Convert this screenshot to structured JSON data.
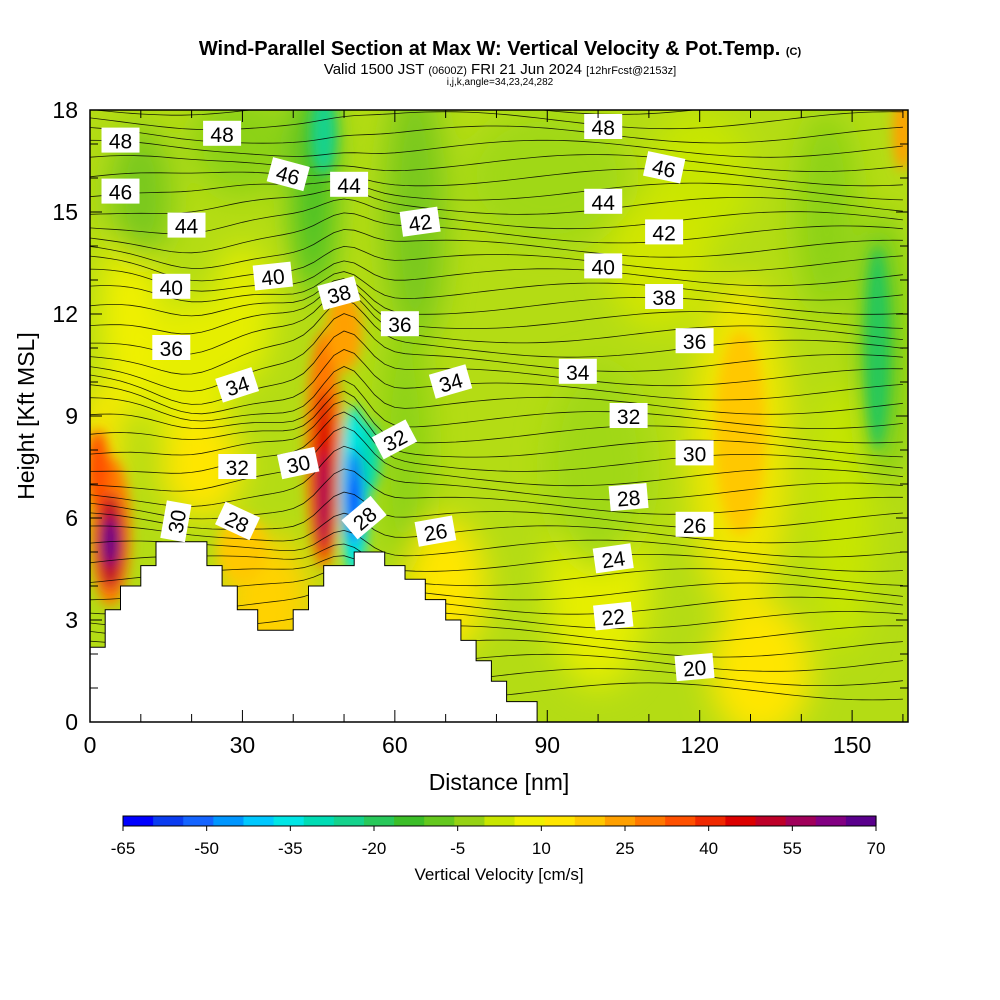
{
  "title": {
    "main": "Wind-Parallel Section at Max W: Vertical Velocity & Pot.Temp.",
    "main_suffix": "(C)",
    "valid_prefix": "Valid 1500 JST",
    "valid_utc": "(0600Z)",
    "valid_date": "FRI 21 Jun 2024",
    "fcst": "[12hrFcst@2153z]",
    "indices": "i,j,k,angle=34,23,24,282"
  },
  "chart_data": {
    "type": "heatmap",
    "xlabel": "Distance [nm]",
    "ylabel": "Height [Kft MSL]",
    "xlim": [
      0,
      161
    ],
    "ylim": [
      0,
      18
    ],
    "x_ticks": [
      "0",
      "30",
      "60",
      "90",
      "120",
      "150"
    ],
    "y_ticks": [
      "0",
      "3",
      "6",
      "9",
      "12",
      "15",
      "18"
    ],
    "colorbar": {
      "label": "Vertical Velocity [cm/s]",
      "tick_labels": [
        "-65",
        "-50",
        "-35",
        "-20",
        "-5",
        "10",
        "25",
        "40",
        "55",
        "70"
      ],
      "min": -65,
      "max": 70,
      "colors": [
        "#0000ff",
        "#0a3cf0",
        "#1464ff",
        "#0096ff",
        "#00c8ff",
        "#00e6e6",
        "#00dcb4",
        "#14d28c",
        "#28c85a",
        "#3cbe28",
        "#64c81e",
        "#96d214",
        "#c8e600",
        "#f0f000",
        "#ffe600",
        "#ffc800",
        "#ffa000",
        "#ff7800",
        "#ff5000",
        "#f02800",
        "#dc0000",
        "#be0028",
        "#a0005a",
        "#820082",
        "#5a008c"
      ]
    },
    "terrain_profile": [
      [
        0,
        2.2
      ],
      [
        3,
        2.2
      ],
      [
        3,
        3.3
      ],
      [
        6,
        3.3
      ],
      [
        6,
        4.0
      ],
      [
        10,
        4.0
      ],
      [
        10,
        4.6
      ],
      [
        13,
        4.6
      ],
      [
        13,
        5.3
      ],
      [
        23,
        5.3
      ],
      [
        23,
        4.6
      ],
      [
        26,
        4.6
      ],
      [
        26,
        4.0
      ],
      [
        29,
        4.0
      ],
      [
        29,
        3.3
      ],
      [
        33,
        3.3
      ],
      [
        33,
        2.7
      ],
      [
        40,
        2.7
      ],
      [
        40,
        3.3
      ],
      [
        43,
        3.3
      ],
      [
        43,
        4.0
      ],
      [
        46,
        4.0
      ],
      [
        46,
        4.6
      ],
      [
        52,
        4.6
      ],
      [
        52,
        5.0
      ],
      [
        58,
        5.0
      ],
      [
        58,
        4.6
      ],
      [
        62,
        4.6
      ],
      [
        62,
        4.2
      ],
      [
        66,
        4.2
      ],
      [
        66,
        3.6
      ],
      [
        70,
        3.6
      ],
      [
        70,
        3.0
      ],
      [
        73,
        3.0
      ],
      [
        73,
        2.4
      ],
      [
        76,
        2.4
      ],
      [
        76,
        1.8
      ],
      [
        79,
        1.8
      ],
      [
        79,
        1.2
      ],
      [
        82,
        1.2
      ],
      [
        82,
        0.6
      ],
      [
        88,
        0.6
      ],
      [
        88,
        0
      ]
    ],
    "updraft_cores": [
      {
        "x": 4,
        "z": 5.3,
        "w": 70
      },
      {
        "x": 46,
        "z": 7.0,
        "w": 55
      },
      {
        "x": 1,
        "z": 7.5,
        "w": 40
      },
      {
        "x": 128,
        "z": 8.5,
        "w": 25
      }
    ],
    "downdraft_cores": [
      {
        "x": 52,
        "z": 6.5,
        "w": -65
      },
      {
        "x": 46,
        "z": 17.0,
        "w": -25
      },
      {
        "x": 155,
        "z": 11.0,
        "w": -20
      }
    ],
    "isentrope_labels": [
      {
        "x": 6,
        "y": 17.1,
        "text": "48",
        "angle": 0
      },
      {
        "x": 26,
        "y": 17.3,
        "text": "48",
        "angle": 0
      },
      {
        "x": 101,
        "y": 17.5,
        "text": "48",
        "angle": 0
      },
      {
        "x": 6,
        "y": 15.6,
        "text": "46",
        "angle": 0
      },
      {
        "x": 39,
        "y": 16.1,
        "text": "46",
        "angle": 15
      },
      {
        "x": 113,
        "y": 16.3,
        "text": "46",
        "angle": 12
      },
      {
        "x": 51,
        "y": 15.8,
        "text": "44",
        "angle": 0
      },
      {
        "x": 19,
        "y": 14.6,
        "text": "44",
        "angle": 0
      },
      {
        "x": 101,
        "y": 15.3,
        "text": "44",
        "angle": 0
      },
      {
        "x": 65,
        "y": 14.7,
        "text": "42",
        "angle": -8
      },
      {
        "x": 113,
        "y": 14.4,
        "text": "42",
        "angle": 0
      },
      {
        "x": 16,
        "y": 12.8,
        "text": "40",
        "angle": 0
      },
      {
        "x": 36,
        "y": 13.1,
        "text": "40",
        "angle": -6
      },
      {
        "x": 101,
        "y": 13.4,
        "text": "40",
        "angle": 0
      },
      {
        "x": 49,
        "y": 12.6,
        "text": "38",
        "angle": -15
      },
      {
        "x": 113,
        "y": 12.5,
        "text": "38",
        "angle": 0
      },
      {
        "x": 61,
        "y": 11.7,
        "text": "36",
        "angle": 0
      },
      {
        "x": 16,
        "y": 11.0,
        "text": "36",
        "angle": 0
      },
      {
        "x": 119,
        "y": 11.2,
        "text": "36",
        "angle": 0
      },
      {
        "x": 29,
        "y": 9.9,
        "text": "34",
        "angle": -18
      },
      {
        "x": 71,
        "y": 10.0,
        "text": "34",
        "angle": -16
      },
      {
        "x": 96,
        "y": 10.3,
        "text": "34",
        "angle": 0
      },
      {
        "x": 106,
        "y": 9.0,
        "text": "32",
        "angle": 0
      },
      {
        "x": 60,
        "y": 8.3,
        "text": "32",
        "angle": -28
      },
      {
        "x": 29,
        "y": 7.5,
        "text": "32",
        "angle": 0
      },
      {
        "x": 41,
        "y": 7.6,
        "text": "30",
        "angle": -12
      },
      {
        "x": 119,
        "y": 7.9,
        "text": "30",
        "angle": 0
      },
      {
        "x": 17,
        "y": 5.9,
        "text": "30",
        "angle": -80
      },
      {
        "x": 106,
        "y": 6.6,
        "text": "28",
        "angle": -5
      },
      {
        "x": 29,
        "y": 5.9,
        "text": "28",
        "angle": 25
      },
      {
        "x": 54,
        "y": 6.0,
        "text": "28",
        "angle": -40
      },
      {
        "x": 68,
        "y": 5.6,
        "text": "26",
        "angle": -10
      },
      {
        "x": 119,
        "y": 5.8,
        "text": "26",
        "angle": 0
      },
      {
        "x": 103,
        "y": 4.8,
        "text": "24",
        "angle": -8
      },
      {
        "x": 103,
        "y": 3.1,
        "text": "22",
        "angle": -6
      },
      {
        "x": 119,
        "y": 1.6,
        "text": "20",
        "angle": -5
      }
    ]
  }
}
